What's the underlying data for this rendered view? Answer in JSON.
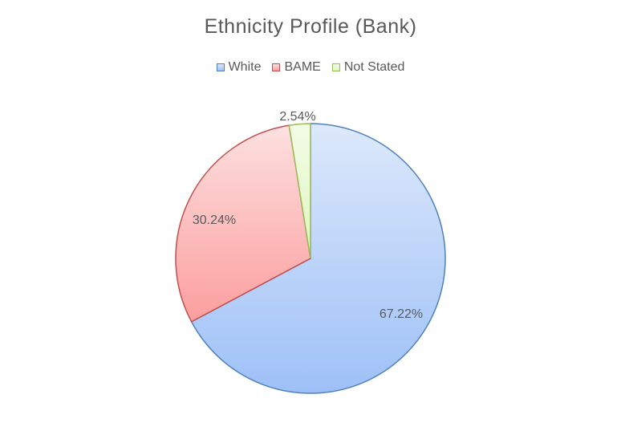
{
  "chart_data": {
    "type": "pie",
    "title": "Ethnicity Profile (Bank)",
    "legend_position": "top",
    "slices": [
      {
        "name": "White",
        "value": 67.22,
        "label": "67.22%",
        "fill_top": "#dde9fb",
        "fill_bottom": "#9ec0f7",
        "stroke": "#4f81bd"
      },
      {
        "name": "BAME",
        "value": 30.24,
        "label": "30.24%",
        "fill_top": "#fde0e0",
        "fill_bottom": "#fb9e9e",
        "stroke": "#c0504d"
      },
      {
        "name": "Not Stated",
        "value": 2.54,
        "label": "2.54%",
        "fill_top": "#f3fbe6",
        "fill_bottom": "#e0f7c0",
        "stroke": "#9bbb59"
      }
    ]
  }
}
